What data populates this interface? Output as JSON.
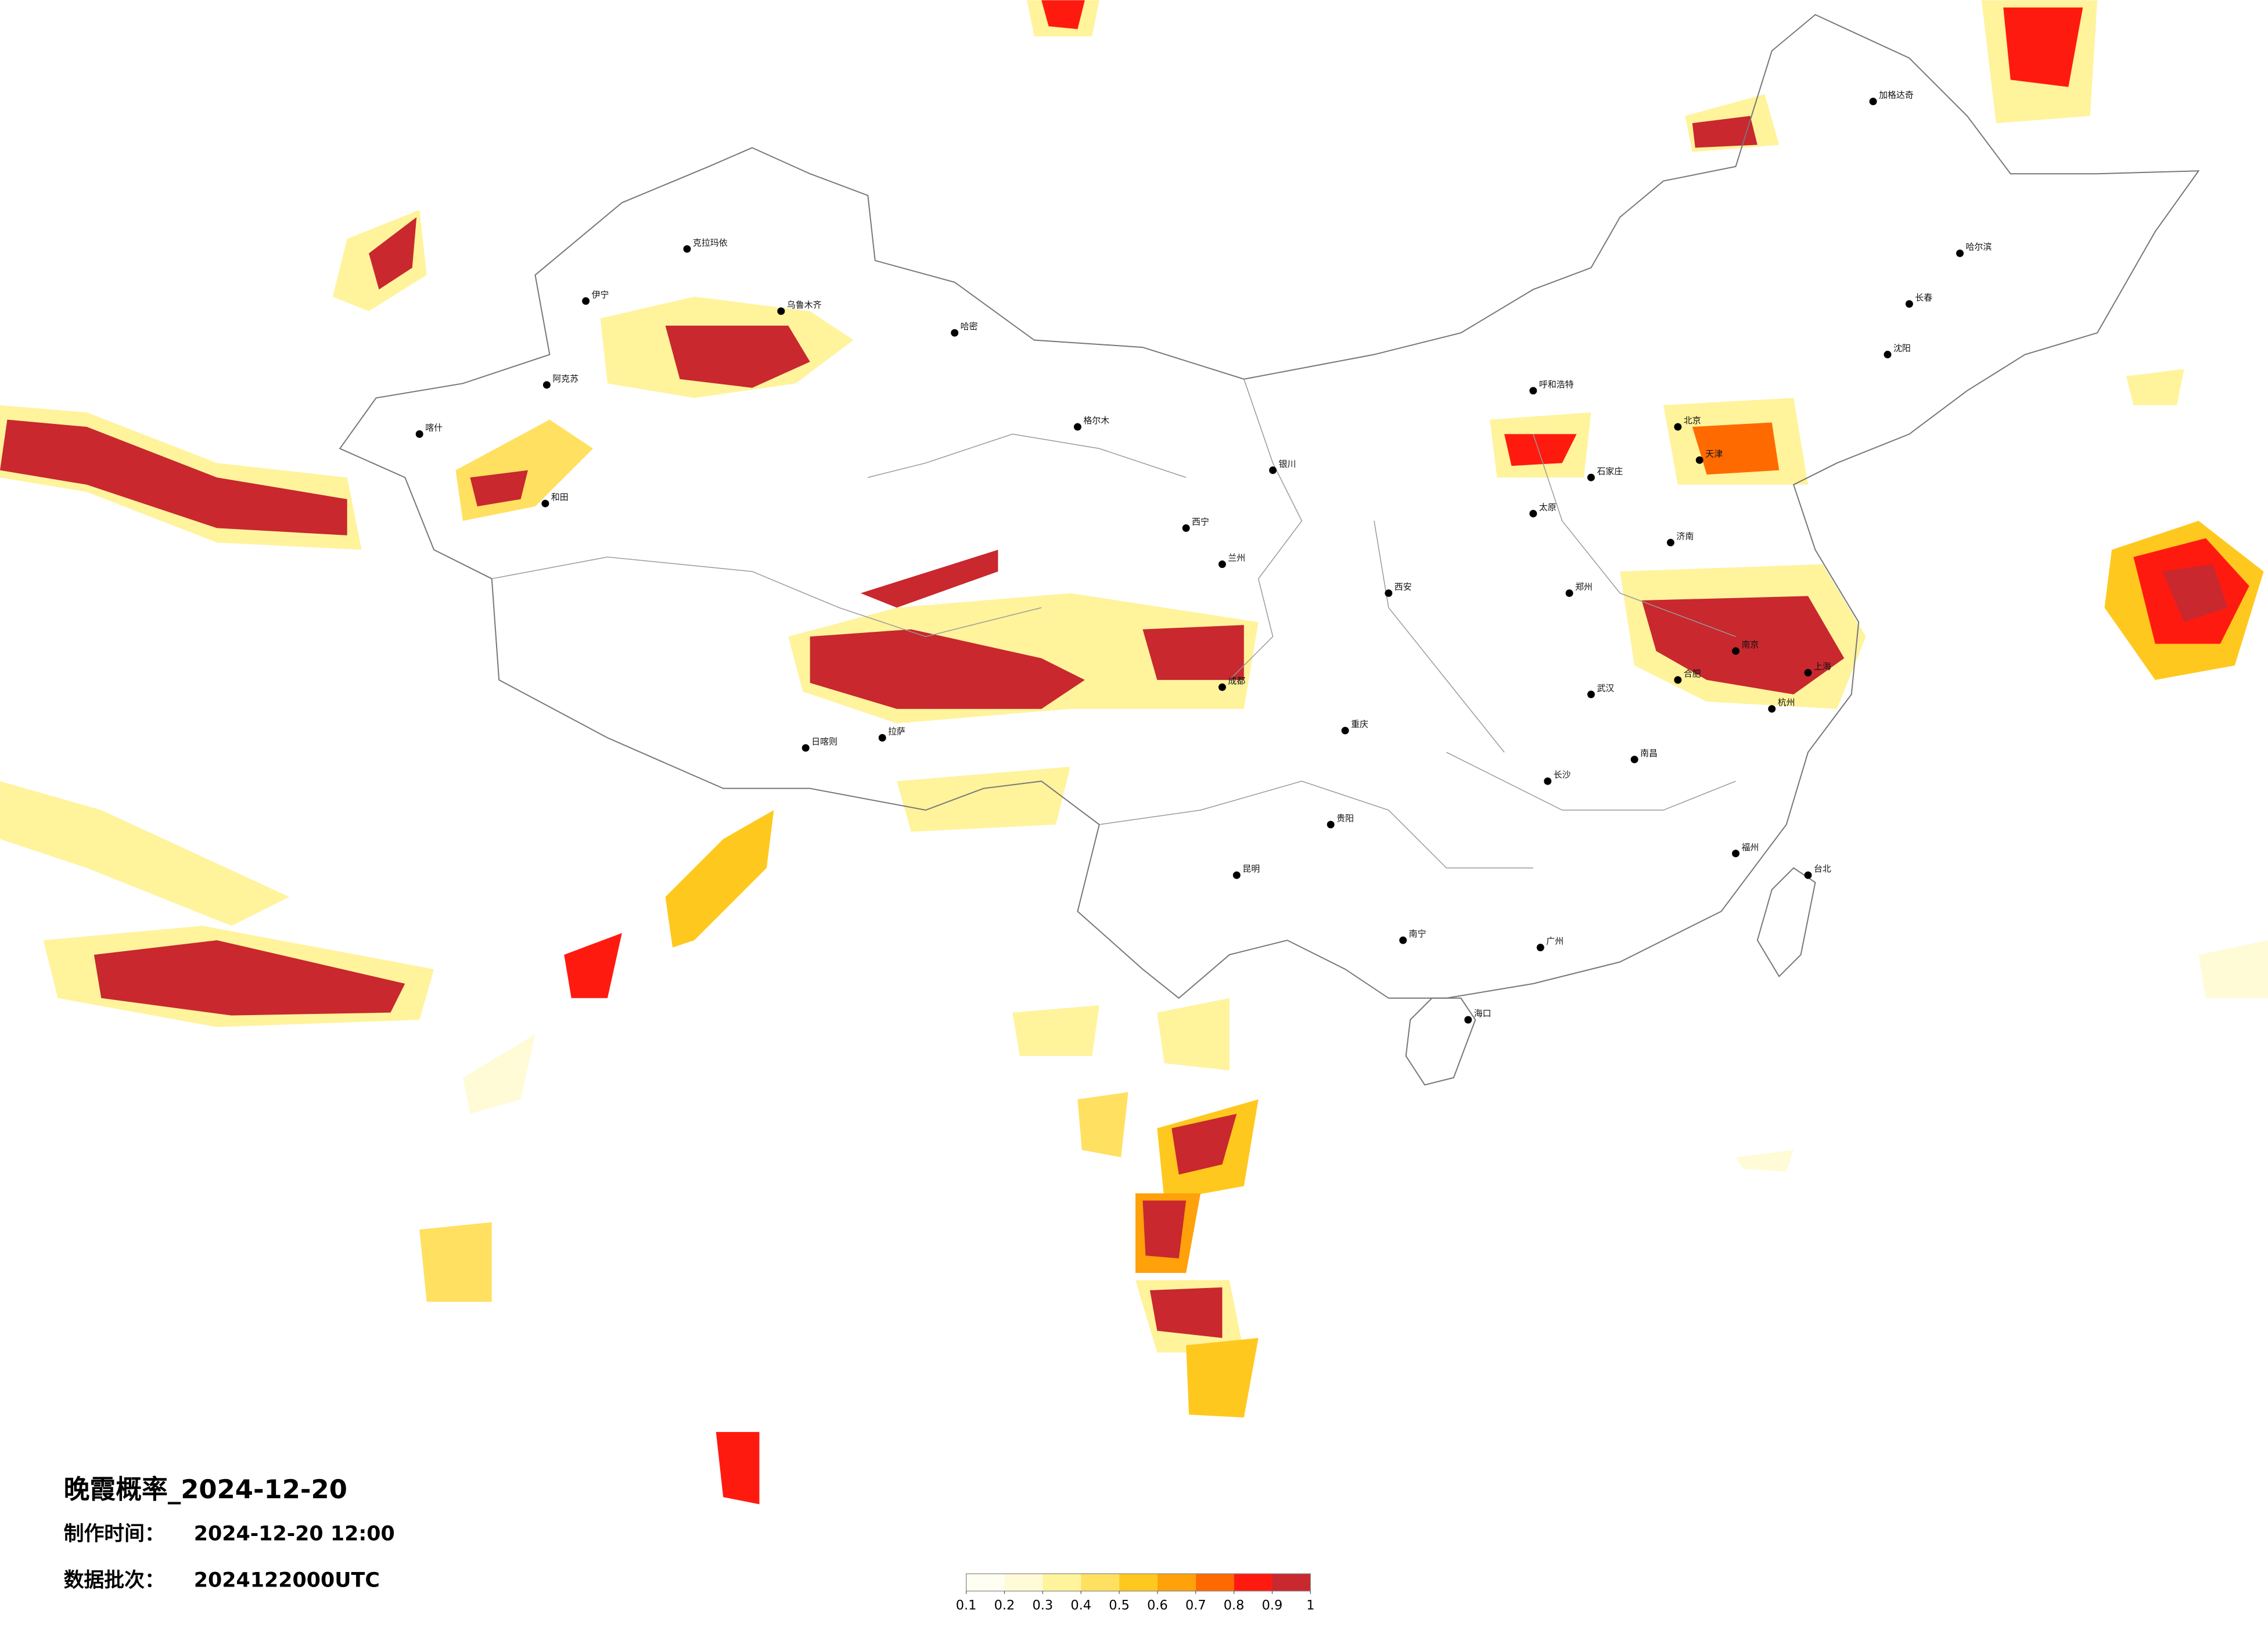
{
  "title": "晚霞概率_2024-12-20",
  "production_time": {
    "label": "制作时间：",
    "value": "2024-12-20 12:00"
  },
  "data_batch": {
    "label": "数据批次：",
    "value": "2024122000UTC"
  },
  "colorbar": {
    "colors": [
      "#fffef2",
      "#fffbd6",
      "#fff39c",
      "#ffe060",
      "#ffc81e",
      "#ffa10a",
      "#ff6a00",
      "#ff1a10",
      "#c8282e"
    ],
    "ticks": [
      0.1,
      0.2,
      0.3,
      0.4,
      0.5,
      0.6,
      0.7,
      0.8,
      0.9,
      1
    ]
  },
  "cities": [
    "加格达奇",
    "哈尔滨",
    "长春",
    "沈阳",
    "北京",
    "天津",
    "石家庄",
    "太原",
    "呼和浩特",
    "济南",
    "郑州",
    "西安",
    "兰州",
    "西宁",
    "银川",
    "格尔木",
    "乌鲁木齐",
    "哈密",
    "克拉玛依",
    "伊宁",
    "阿克苏",
    "喀什",
    "和田",
    "拉萨",
    "日喀则",
    "成都",
    "重庆",
    "武汉",
    "南京",
    "上海",
    "杭州",
    "合肥",
    "长沙",
    "南昌",
    "福州",
    "台北",
    "贵阳",
    "昆明",
    "南宁",
    "广州",
    "海口"
  ]
}
